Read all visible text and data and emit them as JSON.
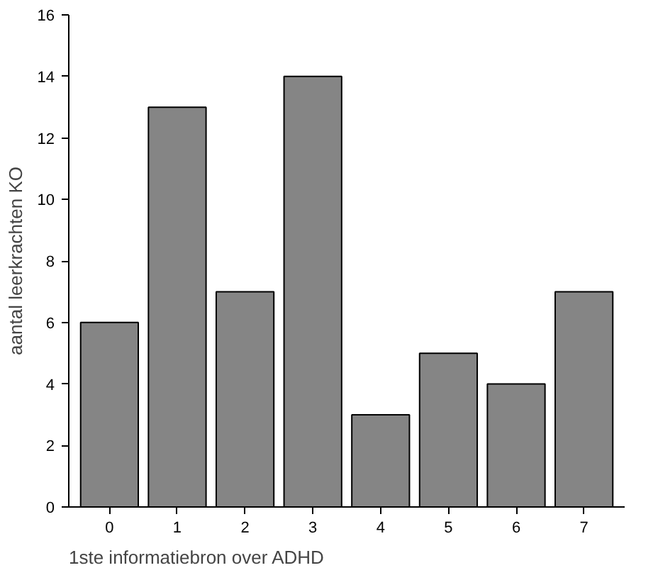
{
  "chart_data": {
    "type": "bar",
    "xlabel": "1ste informatiebron over ADHD",
    "ylabel": "aantal leerkrachten KO",
    "categories": [
      "0",
      "1",
      "2",
      "3",
      "4",
      "5",
      "6",
      "7"
    ],
    "values": [
      6,
      13,
      7,
      14,
      3,
      5,
      4,
      7
    ],
    "color": "#858585",
    "ylim": [
      0,
      16
    ],
    "yticks": [
      0,
      2,
      4,
      6,
      8,
      10,
      12,
      14,
      16
    ],
    "grid": false
  }
}
